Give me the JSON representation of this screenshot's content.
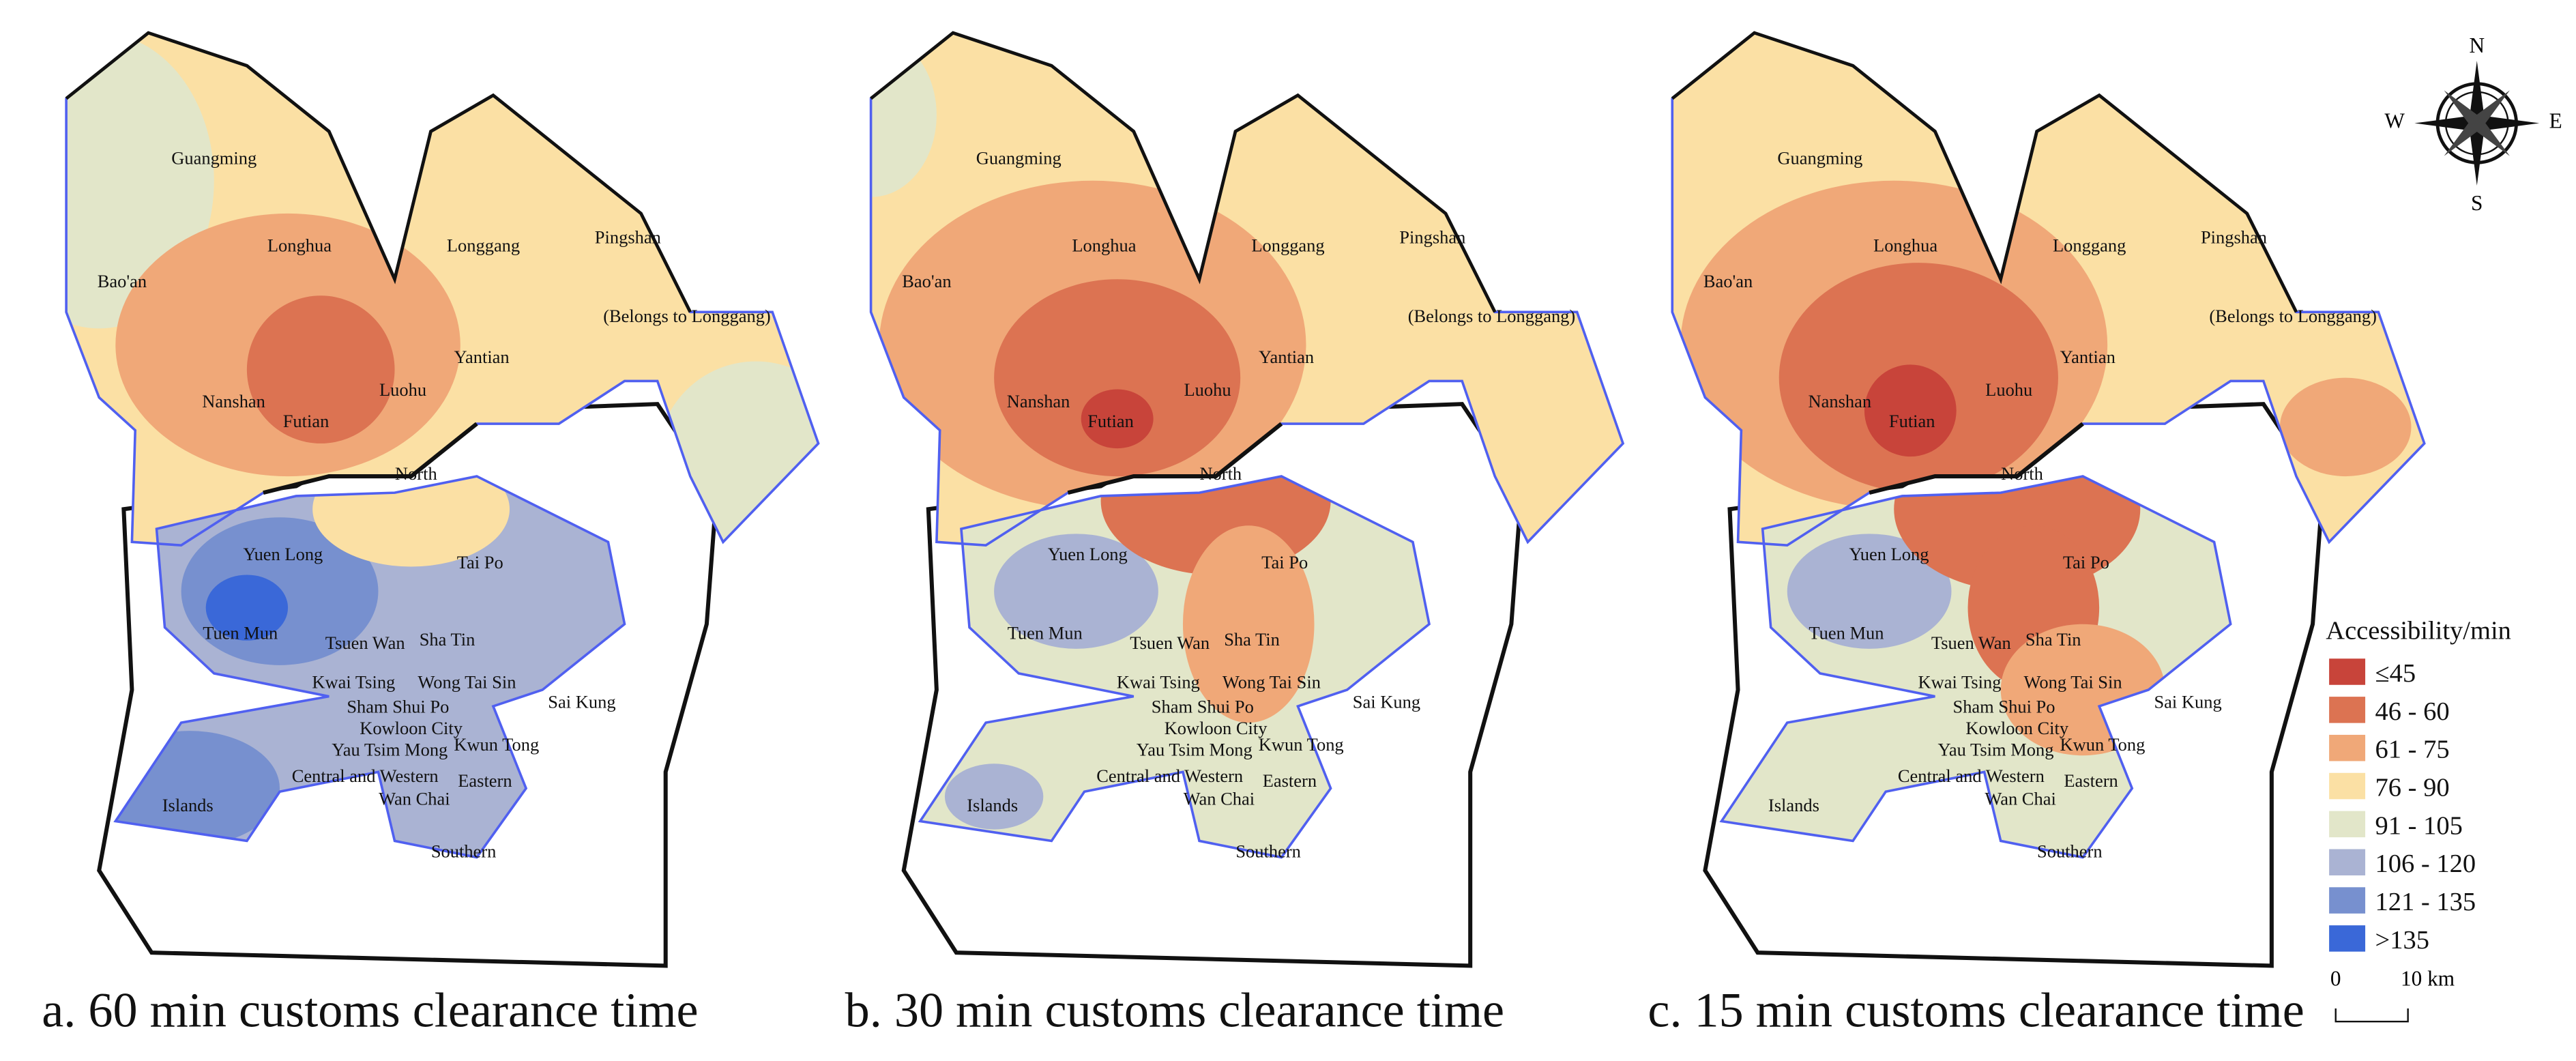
{
  "panels": [
    {
      "caption": "a. 60 min customs clearance time"
    },
    {
      "caption": "b. 30 min customs clearance time"
    },
    {
      "caption": "c. 15 min customs clearance time"
    }
  ],
  "district_labels": [
    "Guangming",
    "Longhua",
    "Longgang",
    "Pingshan",
    "Bao'an",
    "(Belongs to Longgang)",
    "Yantian",
    "Nanshan",
    "Luohu",
    "Futian",
    "North",
    "Yuen Long",
    "Tai Po",
    "Tuen Mun",
    "Tsuen Wan",
    "Sha Tin",
    "Kwai Tsing",
    "Wong Tai Sin",
    "Sai Kung",
    "Sham Shui Po",
    "Kowloon City",
    "Yau Tsim Mong",
    "Kwun Tong",
    "Central and Western",
    "Eastern",
    "Wan Chai",
    "Islands",
    "Southern"
  ],
  "legend": {
    "title": "Accessibility/min",
    "items": [
      {
        "label": "≤45",
        "color": "#c8443a"
      },
      {
        "label": "46 - 60",
        "color": "#dc7352"
      },
      {
        "label": "61 - 75",
        "color": "#f0a878"
      },
      {
        "label": "76 - 90",
        "color": "#fbe0a4"
      },
      {
        "label": "91 - 105",
        "color": "#e2e6c9"
      },
      {
        "label": "106 - 120",
        "color": "#aab3d3"
      },
      {
        "label": "121 - 135",
        "color": "#7790cf"
      },
      {
        "label": ">135",
        "color": "#3a68d8"
      }
    ]
  },
  "compass": {
    "n": "N",
    "s": "S",
    "e": "E",
    "w": "W"
  },
  "scale_bar": {
    "start": "0",
    "end": "10 km"
  }
}
